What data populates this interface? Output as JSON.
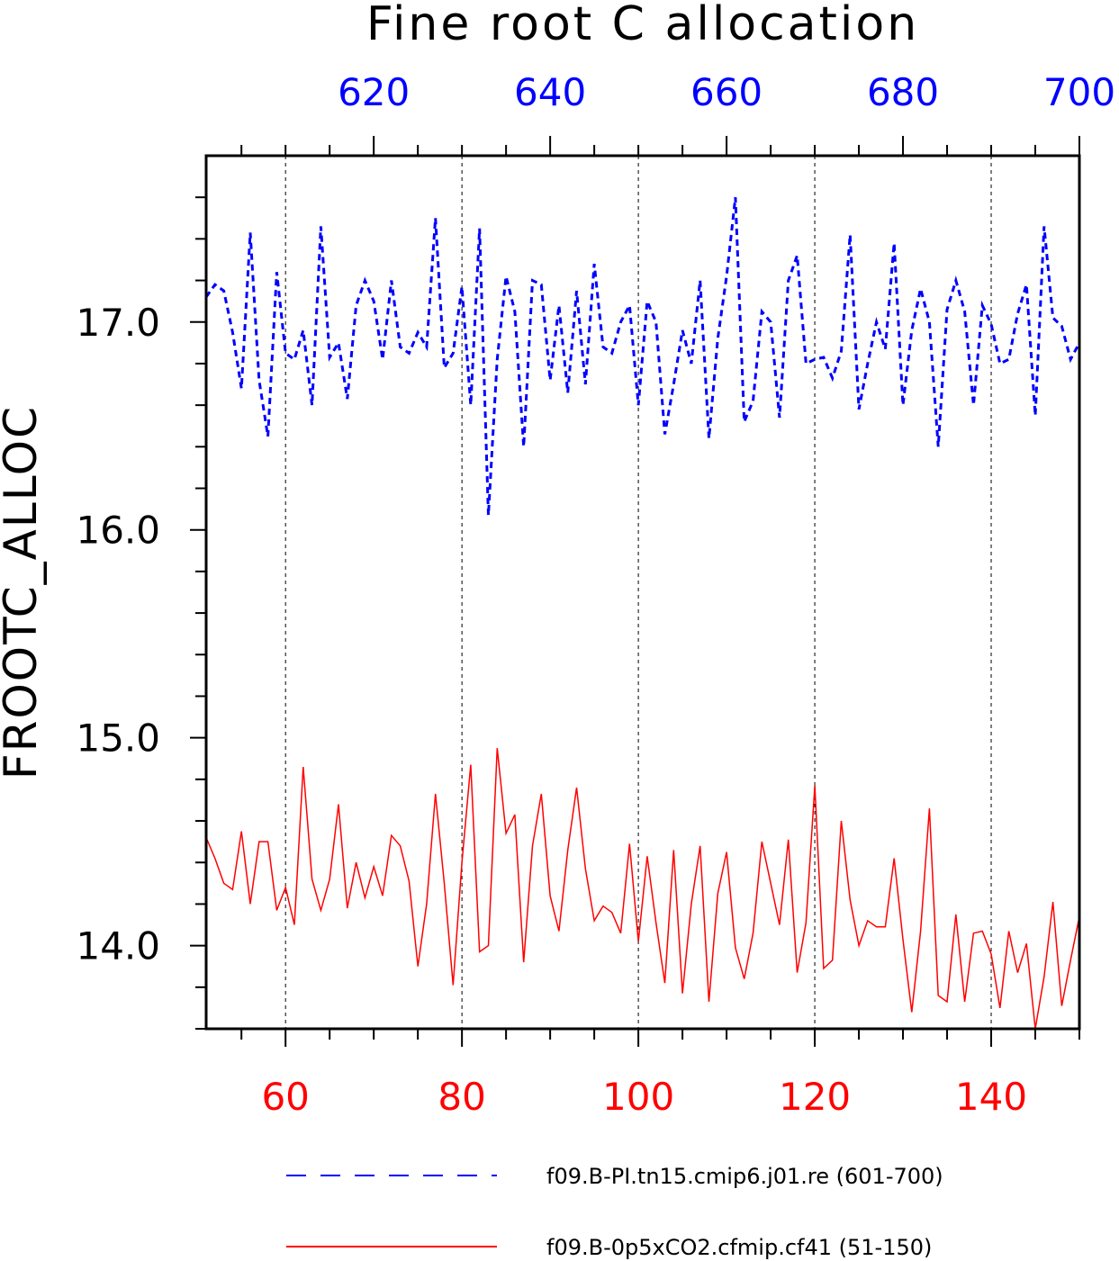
{
  "chart_data": {
    "type": "line",
    "title": "Fine root C allocation",
    "ylabel": "FROOTC_ALLOC",
    "ylim": [
      13.6,
      17.8
    ],
    "yticks": [
      14.0,
      15.0,
      16.0,
      17.0
    ],
    "ytick_labels": [
      "14.0",
      "15.0",
      "16.0",
      "17.0"
    ],
    "grid": "vertical dashed at bottom-axis major ticks",
    "legend_position": "bottom",
    "axes": {
      "bottom": {
        "range": [
          51,
          150
        ],
        "ticks": [
          60,
          80,
          100,
          120,
          140
        ],
        "tick_labels": [
          "60",
          "80",
          "100",
          "120",
          "140"
        ],
        "color": "#ff0000"
      },
      "top": {
        "range": [
          601,
          700
        ],
        "ticks": [
          620,
          640,
          660,
          680,
          700
        ],
        "tick_labels": [
          "620",
          "640",
          "660",
          "680",
          "700"
        ],
        "color": "#0000ff"
      }
    },
    "series": [
      {
        "name": "f09.B-PI.tn15.cmip6.j01.re (601-700)",
        "axis": "top",
        "color": "#0000ff",
        "style": "dashed",
        "x_start": 601,
        "values": [
          17.12,
          17.18,
          17.15,
          16.95,
          16.68,
          17.43,
          16.72,
          16.45,
          17.24,
          16.85,
          16.82,
          16.96,
          16.6,
          17.46,
          16.83,
          16.9,
          16.63,
          17.08,
          17.2,
          17.1,
          16.82,
          17.2,
          16.88,
          16.85,
          16.95,
          16.88,
          17.5,
          16.78,
          16.85,
          17.17,
          16.6,
          17.45,
          16.07,
          16.82,
          17.22,
          17.05,
          16.4,
          17.2,
          17.18,
          16.72,
          17.08,
          16.66,
          17.15,
          16.7,
          17.28,
          16.88,
          16.85,
          17.0,
          17.08,
          16.6,
          17.1,
          17.0,
          16.46,
          16.7,
          16.96,
          16.8,
          17.2,
          16.44,
          16.92,
          17.22,
          17.6,
          16.52,
          16.62,
          17.05,
          17.0,
          16.54,
          17.2,
          17.32,
          16.8,
          16.82,
          16.83,
          16.73,
          16.86,
          17.42,
          16.58,
          16.8,
          17.0,
          16.87,
          17.38,
          16.6,
          16.96,
          17.16,
          17.0,
          16.4,
          17.06,
          17.2,
          17.05,
          16.6,
          17.08,
          16.99,
          16.8,
          16.82,
          17.04,
          17.18,
          16.55,
          17.46,
          17.02,
          16.98,
          16.82,
          16.9
        ]
      },
      {
        "name": "f09.B-0p5xCO2.cfmip.cf41 (51-150)",
        "axis": "bottom",
        "color": "#ff0000",
        "style": "solid",
        "x_start": 51,
        "values": [
          14.52,
          14.42,
          14.3,
          14.27,
          14.55,
          14.2,
          14.5,
          14.5,
          14.17,
          14.28,
          14.1,
          14.86,
          14.32,
          14.17,
          14.32,
          14.68,
          14.18,
          14.4,
          14.23,
          14.38,
          14.24,
          14.53,
          14.48,
          14.31,
          13.9,
          14.2,
          14.73,
          14.3,
          13.81,
          14.4,
          14.87,
          13.97,
          14.0,
          14.95,
          14.54,
          14.63,
          13.92,
          14.48,
          14.73,
          14.24,
          14.07,
          14.46,
          14.76,
          14.37,
          14.12,
          14.19,
          14.16,
          14.06,
          14.49,
          14.02,
          14.43,
          14.11,
          13.82,
          14.46,
          13.77,
          14.2,
          14.48,
          13.73,
          14.25,
          14.45,
          13.99,
          13.84,
          14.06,
          14.5,
          14.3,
          14.1,
          14.51,
          13.87,
          14.11,
          14.77,
          13.89,
          13.93,
          14.6,
          14.22,
          14.0,
          14.12,
          14.09,
          14.09,
          14.42,
          14.03,
          13.68,
          14.07,
          14.66,
          13.76,
          13.73,
          14.15,
          13.73,
          14.06,
          14.07,
          13.96,
          13.7,
          14.07,
          13.87,
          14.01,
          13.6,
          13.85,
          14.21,
          13.71,
          13.93,
          14.14
        ]
      }
    ]
  }
}
